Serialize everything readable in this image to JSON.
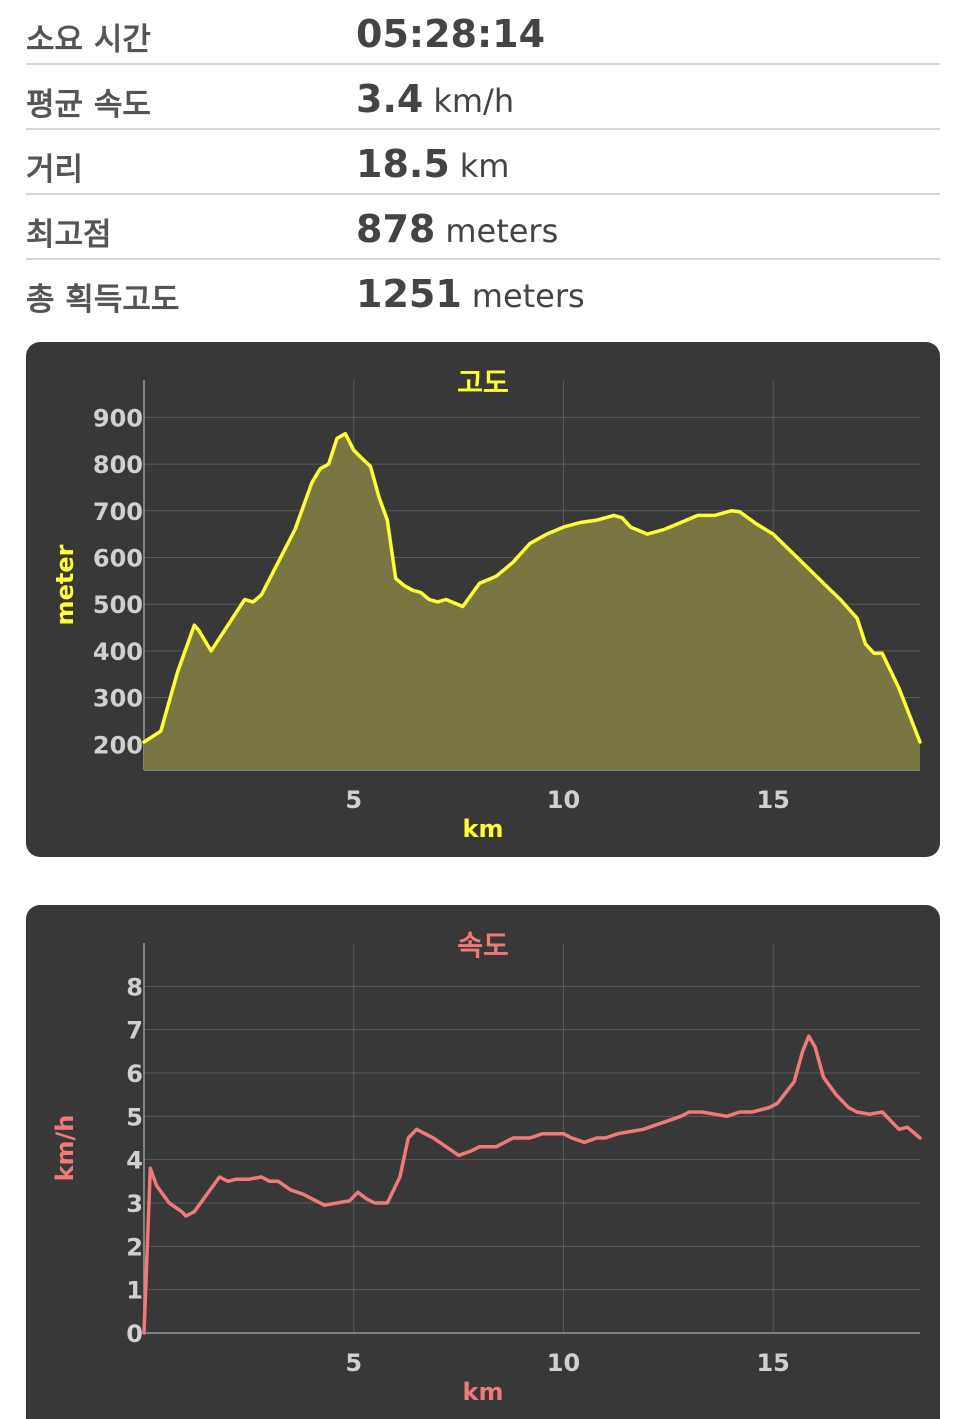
{
  "stats": [
    {
      "label": "소요 시간",
      "value": "05:28:14",
      "unit": ""
    },
    {
      "label": "평균 속도",
      "value": "3.4",
      "unit": "km/h"
    },
    {
      "label": "거리",
      "value": "18.5",
      "unit": "km"
    },
    {
      "label": "최고점",
      "value": "878",
      "unit": "meters"
    },
    {
      "label": "총 획득고도",
      "value": "1251",
      "unit": "meters"
    }
  ],
  "colors": {
    "panel": "#383838",
    "grid": "#5a5a5a",
    "tick": "#d0d0d0",
    "elevation": "#ffff33",
    "elevation_fill": "#7a7643",
    "speed": "#f07a7a"
  },
  "chart_data": [
    {
      "type": "area",
      "title": "고도",
      "xlabel": "km",
      "ylabel": "meter",
      "xlim": [
        0,
        18.5
      ],
      "ylim": [
        145,
        980
      ],
      "xticks": [
        5,
        10,
        15
      ],
      "yticks": [
        200,
        300,
        400,
        500,
        600,
        700,
        800,
        900
      ],
      "grid": true,
      "series": [
        {
          "x": [
            0,
            0.4,
            0.8,
            1.2,
            1.3,
            1.6,
            2.0,
            2.4,
            2.6,
            2.8,
            3.2,
            3.6,
            4.0,
            4.2,
            4.4,
            4.6,
            4.8,
            5.0,
            5.2,
            5.4,
            5.6,
            5.8,
            6.0,
            6.2,
            6.4,
            6.6,
            6.8,
            7.0,
            7.2,
            7.6,
            8.0,
            8.4,
            8.8,
            9.2,
            9.6,
            10.0,
            10.4,
            10.8,
            11.2,
            11.4,
            11.6,
            12.0,
            12.4,
            12.8,
            13.2,
            13.6,
            14.0,
            14.2,
            14.6,
            15.0,
            15.4,
            15.8,
            16.2,
            16.6,
            17.0,
            17.2,
            17.4,
            17.6,
            18.0,
            18.5
          ],
          "y": [
            205,
            228,
            355,
            455,
            445,
            400,
            455,
            510,
            505,
            520,
            590,
            660,
            760,
            790,
            800,
            855,
            865,
            830,
            812,
            795,
            730,
            680,
            555,
            540,
            530,
            525,
            510,
            505,
            510,
            495,
            545,
            560,
            590,
            630,
            650,
            665,
            675,
            680,
            690,
            685,
            665,
            650,
            660,
            675,
            690,
            690,
            700,
            698,
            672,
            650,
            615,
            580,
            545,
            510,
            470,
            415,
            395,
            395,
            320,
            205
          ]
        }
      ]
    },
    {
      "type": "line",
      "title": "속도",
      "xlabel": "km",
      "ylabel": "km/h",
      "xlim": [
        0,
        18.5
      ],
      "ylim": [
        0,
        9
      ],
      "xticks": [
        5,
        10,
        15
      ],
      "yticks": [
        0,
        1,
        2,
        3,
        4,
        5,
        6,
        7,
        8
      ],
      "grid": true,
      "series": [
        {
          "x": [
            0,
            0.15,
            0.3,
            0.6,
            0.9,
            1.0,
            1.2,
            1.5,
            1.8,
            2.0,
            2.2,
            2.5,
            2.8,
            3.0,
            3.2,
            3.5,
            3.8,
            4.0,
            4.3,
            4.6,
            4.9,
            5.1,
            5.3,
            5.5,
            5.8,
            6.1,
            6.3,
            6.5,
            6.7,
            6.9,
            7.2,
            7.5,
            7.8,
            8.0,
            8.4,
            8.8,
            9.2,
            9.5,
            9.8,
            10.0,
            10.2,
            10.5,
            10.8,
            11.0,
            11.3,
            11.6,
            11.9,
            12.2,
            12.5,
            12.8,
            13.0,
            13.3,
            13.6,
            13.9,
            14.2,
            14.5,
            14.7,
            14.9,
            15.1,
            15.3,
            15.5,
            15.7,
            15.85,
            16.0,
            16.2,
            16.5,
            16.8,
            17.0,
            17.3,
            17.6,
            17.8,
            18.0,
            18.2,
            18.5
          ],
          "y": [
            0,
            3.8,
            3.4,
            3.0,
            2.8,
            2.7,
            2.8,
            3.2,
            3.6,
            3.5,
            3.55,
            3.55,
            3.6,
            3.5,
            3.5,
            3.3,
            3.2,
            3.1,
            2.95,
            3.0,
            3.05,
            3.25,
            3.1,
            3.0,
            3.0,
            3.6,
            4.5,
            4.7,
            4.6,
            4.5,
            4.3,
            4.1,
            4.2,
            4.3,
            4.3,
            4.5,
            4.5,
            4.6,
            4.6,
            4.6,
            4.5,
            4.4,
            4.5,
            4.5,
            4.6,
            4.65,
            4.7,
            4.8,
            4.9,
            5.0,
            5.1,
            5.1,
            5.05,
            5.0,
            5.1,
            5.1,
            5.15,
            5.2,
            5.3,
            5.55,
            5.8,
            6.5,
            6.85,
            6.6,
            5.9,
            5.5,
            5.2,
            5.1,
            5.05,
            5.1,
            4.9,
            4.7,
            4.75,
            4.5
          ]
        }
      ]
    }
  ]
}
